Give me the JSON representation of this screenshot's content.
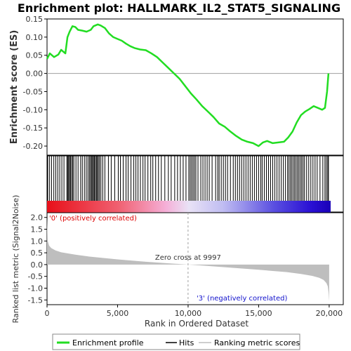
{
  "chart_data": {
    "type": "line",
    "title": "Enrichment plot: HALLMARK_IL2_STAT5_SIGNALING",
    "colors": {
      "es_line": "#22dd22",
      "hits": "#000000",
      "metric_fill": "#bebebe",
      "zero_line": "#a0a0a0",
      "positive_label": "#dd0000",
      "negative_label": "#1111cc"
    },
    "es_panel": {
      "ylabel": "Enrichment score (ES)",
      "ylim": [
        -0.225,
        0.15
      ],
      "yticks": [
        0.15,
        0.1,
        0.05,
        0.0,
        -0.05,
        -0.1,
        -0.15,
        -0.2
      ],
      "ytick_labels": [
        "0.15",
        "0.10",
        "0.05",
        "0.00",
        "-0.05",
        "-0.10",
        "-0.15",
        "-0.20"
      ],
      "series": [
        {
          "name": "Enrichment profile",
          "x": [
            0,
            200,
            500,
            800,
            1000,
            1300,
            1450,
            1600,
            1800,
            2000,
            2200,
            2500,
            2800,
            3100,
            3300,
            3600,
            3800,
            4100,
            4400,
            4700,
            5000,
            5300,
            5600,
            5900,
            6200,
            6600,
            7000,
            7400,
            7800,
            8200,
            8600,
            9000,
            9400,
            9800,
            10200,
            10600,
            11000,
            11400,
            11800,
            12200,
            12600,
            13000,
            13400,
            13800,
            14200,
            14600,
            15000,
            15300,
            15600,
            16000,
            16400,
            16800,
            17100,
            17400,
            17700,
            18000,
            18300,
            18600,
            18900,
            19200,
            19500,
            19700,
            19850,
            19950
          ],
          "y": [
            0.04,
            0.055,
            0.045,
            0.052,
            0.065,
            0.055,
            0.1,
            0.115,
            0.13,
            0.128,
            0.12,
            0.118,
            0.115,
            0.12,
            0.13,
            0.135,
            0.132,
            0.125,
            0.11,
            0.1,
            0.095,
            0.09,
            0.082,
            0.075,
            0.07,
            0.066,
            0.064,
            0.055,
            0.045,
            0.03,
            0.015,
            0.0,
            -0.015,
            -0.035,
            -0.055,
            -0.072,
            -0.09,
            -0.105,
            -0.12,
            -0.138,
            -0.147,
            -0.16,
            -0.172,
            -0.182,
            -0.188,
            -0.192,
            -0.2,
            -0.19,
            -0.186,
            -0.192,
            -0.19,
            -0.188,
            -0.176,
            -0.16,
            -0.135,
            -0.115,
            -0.105,
            -0.098,
            -0.09,
            -0.095,
            -0.1,
            -0.095,
            -0.05,
            0.0
          ]
        }
      ]
    },
    "hits_panel": {
      "positions": [
        50,
        180,
        320,
        480,
        620,
        760,
        900,
        1050,
        1200,
        1400,
        1470,
        1530,
        1600,
        1660,
        1740,
        1820,
        1900,
        2050,
        2200,
        2380,
        2500,
        2650,
        2780,
        2900,
        3000,
        3080,
        3150,
        3220,
        3290,
        3350,
        3420,
        3500,
        3560,
        3640,
        3720,
        3820,
        3950,
        4100,
        4350,
        4550,
        4800,
        5050,
        5200,
        5400,
        5600,
        5750,
        5950,
        6150,
        6300,
        6450,
        6620,
        6800,
        6950,
        7150,
        7350,
        7500,
        7700,
        7900,
        8100,
        8350,
        8600,
        8800,
        9050,
        9250,
        9450,
        9650,
        9850,
        10050,
        10150,
        10250,
        10350,
        10450,
        10550,
        10700,
        10900,
        11050,
        11200,
        11350,
        11500,
        11700,
        11950,
        12100,
        12200,
        12350,
        12500,
        12650,
        12800,
        13000,
        13200,
        13350,
        13500,
        13650,
        13800,
        13950,
        14100,
        14250,
        14400,
        14550,
        14700,
        14850,
        15000,
        15150,
        15250,
        15400,
        15550,
        15700,
        15850,
        16000,
        16150,
        16300,
        16450,
        16600,
        16750,
        16900,
        17050,
        17150,
        17250,
        17350,
        17450,
        17550,
        17650,
        17750,
        17850,
        17950,
        18050,
        18150,
        18250,
        18400,
        18550,
        18700,
        18850,
        19000,
        19150,
        19350,
        19550,
        19700,
        19800,
        19900,
        19950
      ]
    },
    "metric_panel": {
      "ylabel": "Ranked list metric (Signal2Noise)",
      "ylim": [
        -1.7,
        2.2
      ],
      "yticks": [
        2.0,
        1.5,
        1.0,
        0.5,
        0.0,
        -0.5,
        -1.0,
        -1.5
      ],
      "ytick_labels": [
        "2.0",
        "1.5",
        "1.0",
        "0.5",
        "0.0",
        "-0.5",
        "-1.0",
        "-1.5"
      ],
      "x": [
        0,
        50,
        150,
        300,
        600,
        1000,
        2000,
        3000,
        5000,
        7000,
        9000,
        9997,
        11000,
        13000,
        15000,
        17000,
        18000,
        18800,
        19300,
        19600,
        19800,
        19900,
        19960,
        20000
      ],
      "values": [
        1.95,
        1.0,
        0.8,
        0.7,
        0.6,
        0.52,
        0.42,
        0.34,
        0.22,
        0.12,
        0.04,
        0.0,
        -0.04,
        -0.13,
        -0.22,
        -0.32,
        -0.4,
        -0.48,
        -0.56,
        -0.65,
        -0.78,
        -0.92,
        -1.2,
        -1.55
      ],
      "zero_cross_label": "Zero cross at 9997",
      "zero_cross_x": 9997,
      "positive_label": "'0' (positively correlated)",
      "negative_label": "'3' (negatively correlated)"
    },
    "xaxis": {
      "xlabel": "Rank in Ordered Dataset",
      "xlim": [
        0,
        21000
      ],
      "xticks": [
        0,
        5000,
        10000,
        15000,
        20000
      ],
      "xtick_labels": [
        "0",
        "5,000",
        "10,000",
        "15,000",
        "20,000"
      ]
    },
    "legend": {
      "position": "bottom",
      "entries": [
        "Enrichment profile",
        "Hits",
        "Ranking metric scores"
      ]
    }
  }
}
